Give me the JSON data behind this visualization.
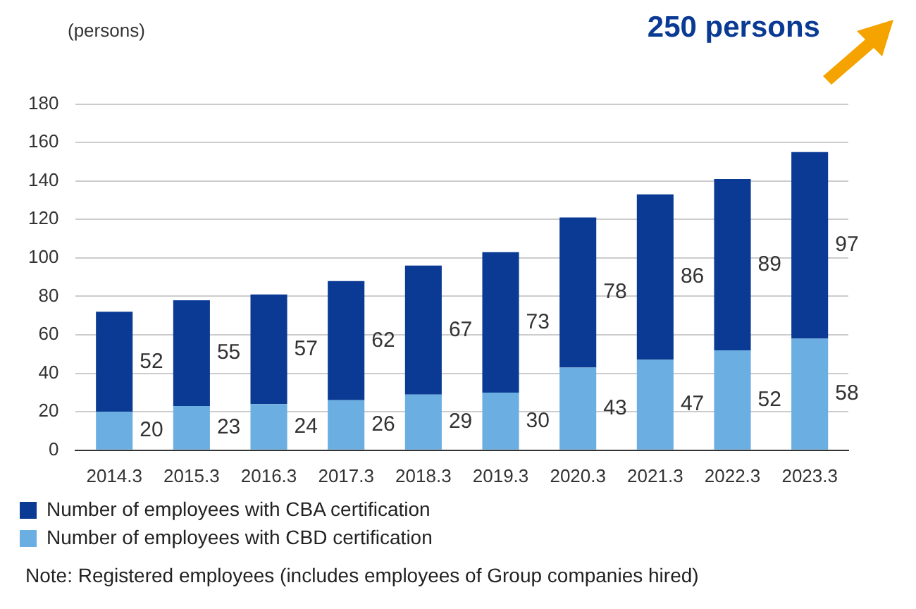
{
  "chart_data": {
    "type": "bar",
    "stacked": true,
    "ylabel": "(persons)",
    "categories": [
      "2014.3",
      "2015.3",
      "2016.3",
      "2017.3",
      "2018.3",
      "2019.3",
      "2020.3",
      "2021.3",
      "2022.3",
      "2023.3"
    ],
    "series": [
      {
        "name": "Number of employees with CBD certification",
        "color": "#6aaee2",
        "values": [
          20,
          23,
          24,
          26,
          29,
          30,
          43,
          47,
          52,
          58
        ]
      },
      {
        "name": "Number of employees with CBA certification",
        "color": "#0a3a93",
        "values": [
          52,
          55,
          57,
          62,
          67,
          73,
          78,
          86,
          89,
          97
        ]
      }
    ],
    "ylim": [
      0,
      180
    ],
    "yticks": [
      0,
      20,
      40,
      60,
      80,
      100,
      120,
      140,
      160,
      180
    ],
    "grid": "y",
    "legend": "bottom",
    "data_labels": true,
    "annotations": [
      "250 persons",
      "Note: Registered employees (includes employees of Group companies hired)"
    ]
  }
}
